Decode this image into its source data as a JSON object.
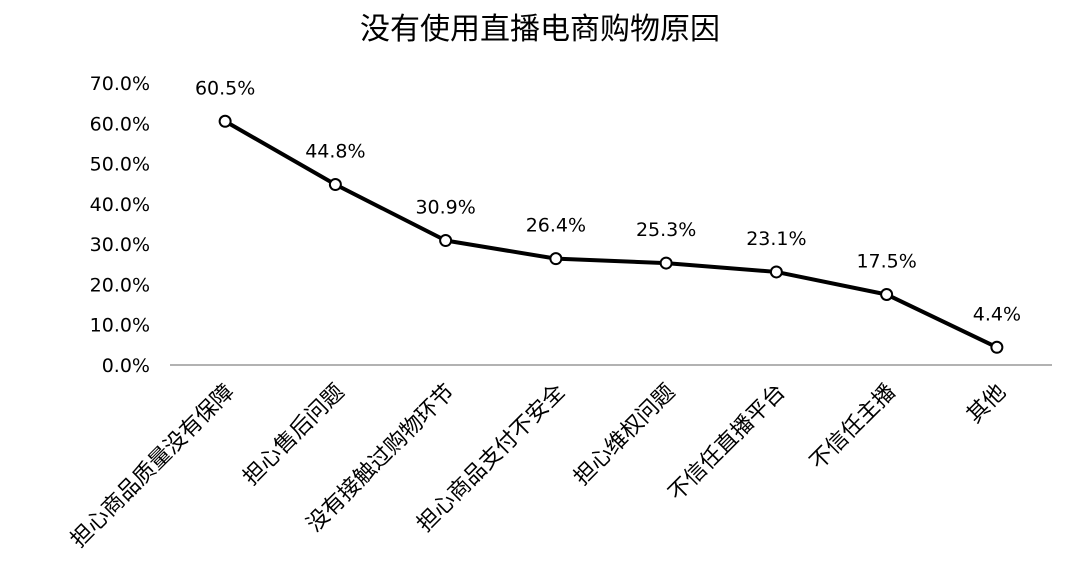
{
  "chart_data": {
    "type": "line",
    "title": "没有使用直播电商购物原因",
    "xlabel": "",
    "ylabel": "",
    "ylim": [
      0,
      70
    ],
    "yticks": [
      "0.0%",
      "10.0%",
      "20.0%",
      "30.0%",
      "40.0%",
      "50.0%",
      "60.0%",
      "70.0%"
    ],
    "categories": [
      "担心商品质量没有保障",
      "担心售后问题",
      "没有接触过购物环节",
      "担心商品支付不安全",
      "担心维权问题",
      "不信任直播平台",
      "不信任主播",
      "其他"
    ],
    "values": [
      60.5,
      44.8,
      30.9,
      26.4,
      25.3,
      23.1,
      17.5,
      4.4
    ],
    "data_labels": [
      "60.5%",
      "44.8%",
      "30.9%",
      "26.4%",
      "25.3%",
      "23.1%",
      "17.5%",
      "4.4%"
    ],
    "grid": false,
    "legend": "none",
    "line_color": "#000000",
    "marker_fill": "#ffffff"
  }
}
